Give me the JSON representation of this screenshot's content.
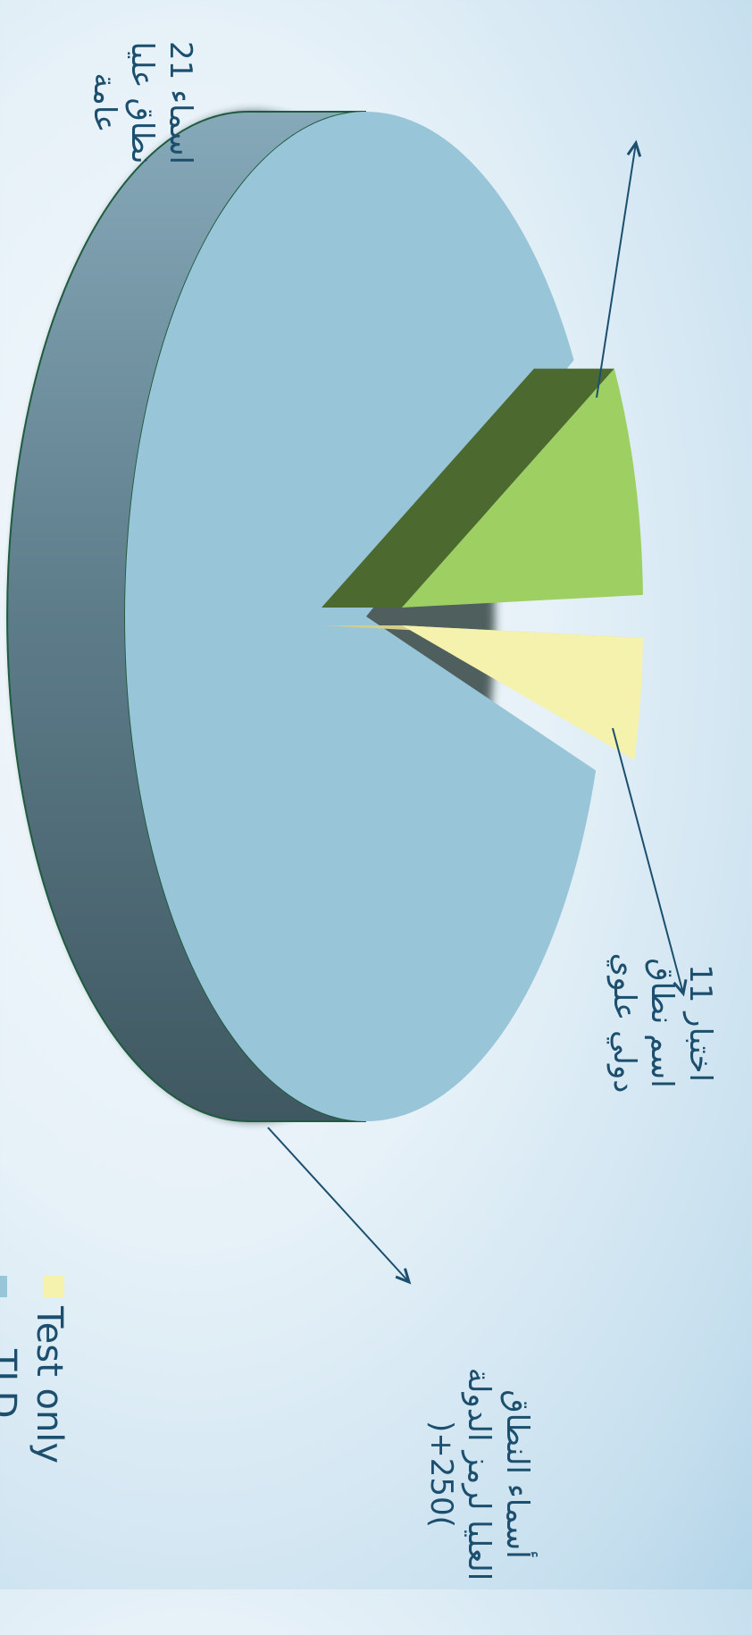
{
  "chart_data": {
    "type": "pie",
    "title": "",
    "slices": [
      {
        "label": "21 اسماء نطاق عليا عامة",
        "value": 21,
        "color": "#9dcf63"
      },
      {
        "label": "Test only",
        "value": 11,
        "color": "#f4f2ad"
      },
      {
        "label": "أسماء النطاق العليا لرمز الدولة (250+)",
        "value": 250,
        "color": "#98c5d8"
      }
    ],
    "callouts": {
      "gtld": {
        "lines": [
          "21 اسماء",
          "نطاق عليا",
          "عامة"
        ]
      },
      "test": {
        "lines": [
          "اختبار 11",
          "اسم نطاق",
          "دولي علوي"
        ]
      },
      "cctld": {
        "lines": [
          "أسماء النطاق",
          "العليا لرمز الدولة",
          ")+250("
        ]
      }
    },
    "legend": [
      {
        "label": "Test only",
        "color": "#f4f2ad"
      },
      {
        "label": "TLD",
        "color": "#98c5d8"
      }
    ]
  }
}
